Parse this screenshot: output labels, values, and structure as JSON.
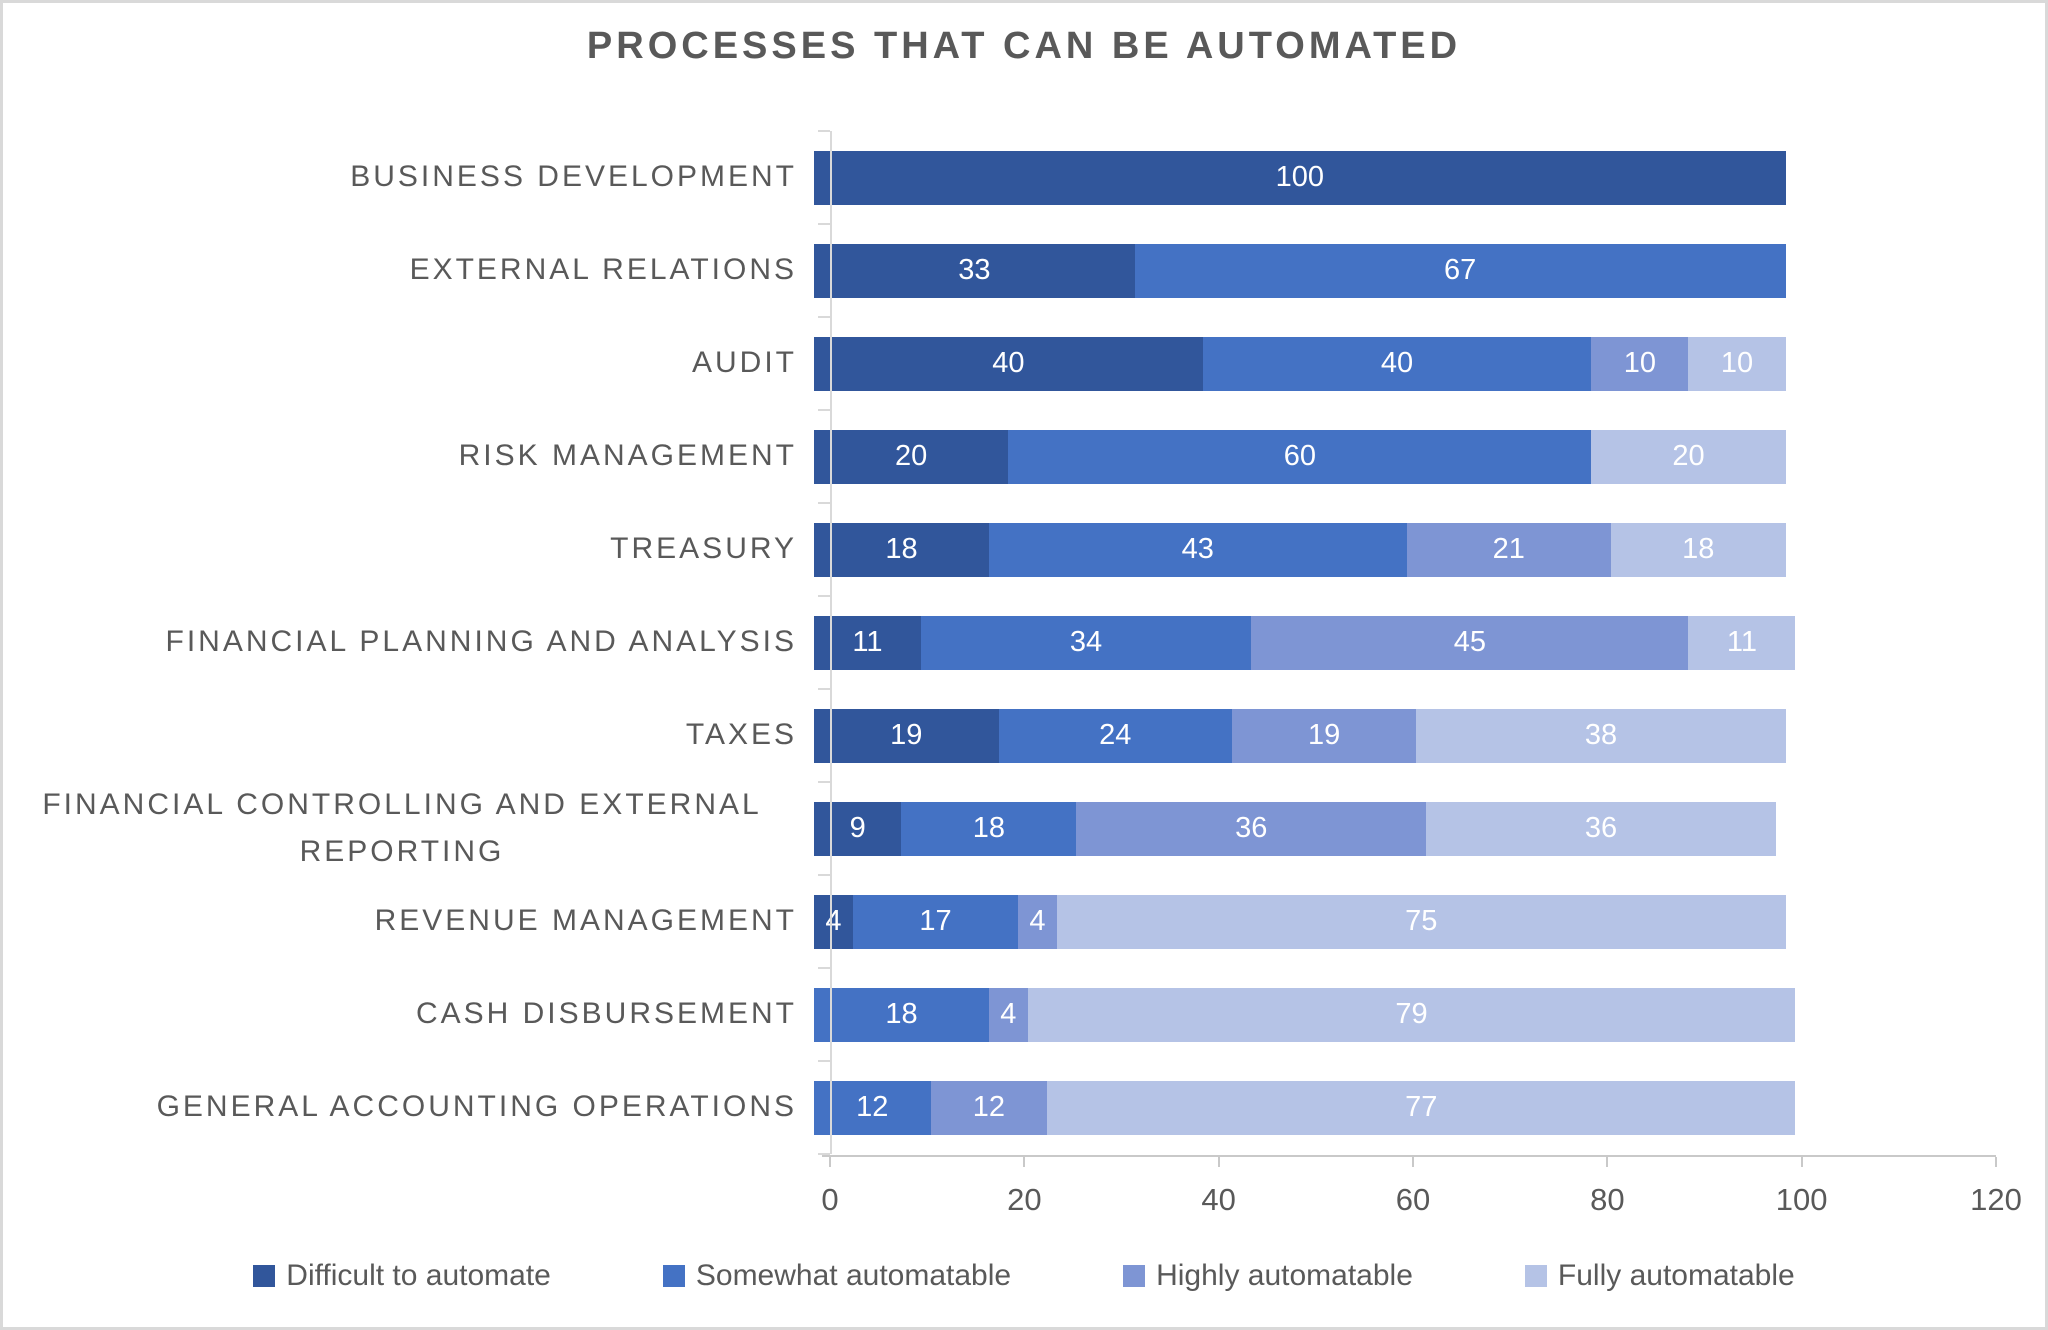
{
  "chart_data": {
    "type": "bar",
    "orientation": "horizontal",
    "stacked": true,
    "title": "PROCESSES THAT CAN BE AUTOMATED",
    "categories": [
      "BUSINESS DEVELOPMENT",
      "EXTERNAL RELATIONS",
      "AUDIT",
      "RISK MANAGEMENT",
      "TREASURY",
      "FINANCIAL PLANNING AND ANALYSIS",
      "TAXES",
      "FINANCIAL CONTROLLING AND EXTERNAL REPORTING",
      "REVENUE MANAGEMENT",
      "CASH DISBURSEMENT",
      "GENERAL ACCOUNTING OPERATIONS"
    ],
    "series": [
      {
        "name": "Difficult to automate",
        "color": "#31569B",
        "values": [
          100,
          33,
          40,
          20,
          18,
          11,
          19,
          9,
          4,
          0,
          0
        ]
      },
      {
        "name": "Somewhat automatable",
        "color": "#4472C4",
        "values": [
          0,
          67,
          40,
          60,
          43,
          34,
          24,
          18,
          17,
          18,
          12
        ]
      },
      {
        "name": "Highly automatable",
        "color": "#7E95D4",
        "values": [
          0,
          0,
          10,
          0,
          21,
          45,
          19,
          36,
          4,
          4,
          12
        ]
      },
      {
        "name": "Fully automatable",
        "color": "#B5C3E6",
        "values": [
          0,
          0,
          10,
          20,
          18,
          11,
          38,
          36,
          75,
          79,
          77
        ]
      }
    ],
    "x_axis": {
      "ticks": [
        0,
        20,
        40,
        60,
        80,
        100,
        120
      ],
      "max": 120
    },
    "ylabel": "",
    "xlabel": "",
    "grid": false,
    "legend_position": "bottom",
    "value_labels": "white, centered in segments"
  }
}
